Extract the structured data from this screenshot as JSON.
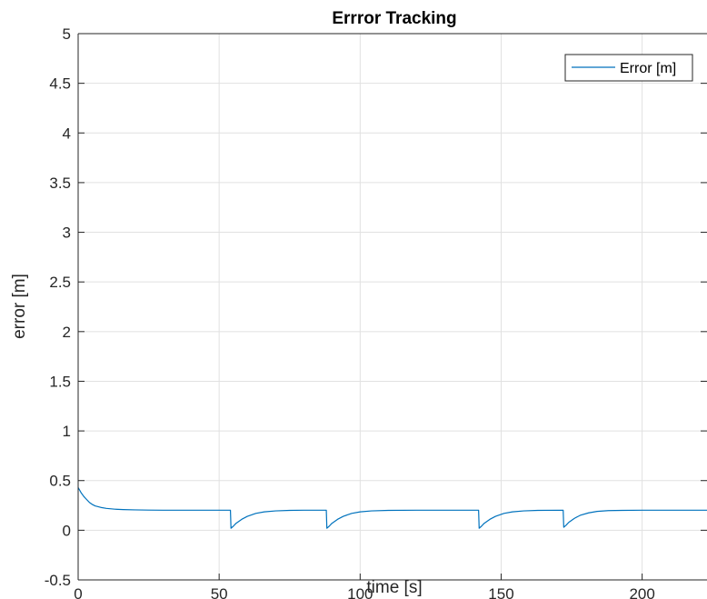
{
  "chart_data": {
    "type": "line",
    "title": "Errror Tracking",
    "xlabel": "time [s]",
    "ylabel": "error [m]",
    "xlim": [
      0,
      223
    ],
    "ylim": [
      -0.5,
      5
    ],
    "xticks": [
      0,
      50,
      100,
      150,
      200
    ],
    "yticks": [
      -0.5,
      0,
      0.5,
      1,
      1.5,
      2,
      2.5,
      3,
      3.5,
      4,
      4.5,
      5
    ],
    "xtick_labels": [
      "0",
      "50",
      "100",
      "150",
      "200"
    ],
    "ytick_labels": [
      "-0.5",
      "0",
      "0.5",
      "1",
      "1.5",
      "2",
      "2.5",
      "3",
      "3.5",
      "4",
      "4.5",
      "5"
    ],
    "grid": true,
    "legend_position": "top-right",
    "series": [
      {
        "name": "Error [m]",
        "color": "#0072bd",
        "x": [
          0,
          1,
          2,
          3,
          4,
          5,
          6,
          8,
          10,
          13,
          16,
          20,
          25,
          30,
          40,
          54,
          54.2,
          55,
          56,
          58,
          60,
          63,
          66,
          70,
          75,
          80,
          88,
          88.2,
          89,
          90,
          92,
          94,
          97,
          100,
          104,
          110,
          120,
          142,
          142.2,
          143,
          144,
          146,
          148,
          151,
          154,
          158,
          163,
          172,
          172.2,
          173,
          174,
          176,
          178,
          181,
          184,
          188,
          193,
          200,
          210,
          223
        ],
        "y": [
          0.43,
          0.38,
          0.34,
          0.31,
          0.28,
          0.26,
          0.245,
          0.23,
          0.22,
          0.212,
          0.208,
          0.205,
          0.203,
          0.202,
          0.202,
          0.202,
          0.02,
          0.04,
          0.07,
          0.11,
          0.14,
          0.17,
          0.185,
          0.195,
          0.2,
          0.202,
          0.202,
          0.02,
          0.04,
          0.07,
          0.11,
          0.14,
          0.17,
          0.185,
          0.195,
          0.2,
          0.202,
          0.202,
          0.02,
          0.04,
          0.07,
          0.11,
          0.14,
          0.17,
          0.185,
          0.195,
          0.2,
          0.202,
          0.03,
          0.05,
          0.08,
          0.12,
          0.15,
          0.175,
          0.19,
          0.198,
          0.2,
          0.202,
          0.202,
          0.202
        ]
      }
    ]
  }
}
